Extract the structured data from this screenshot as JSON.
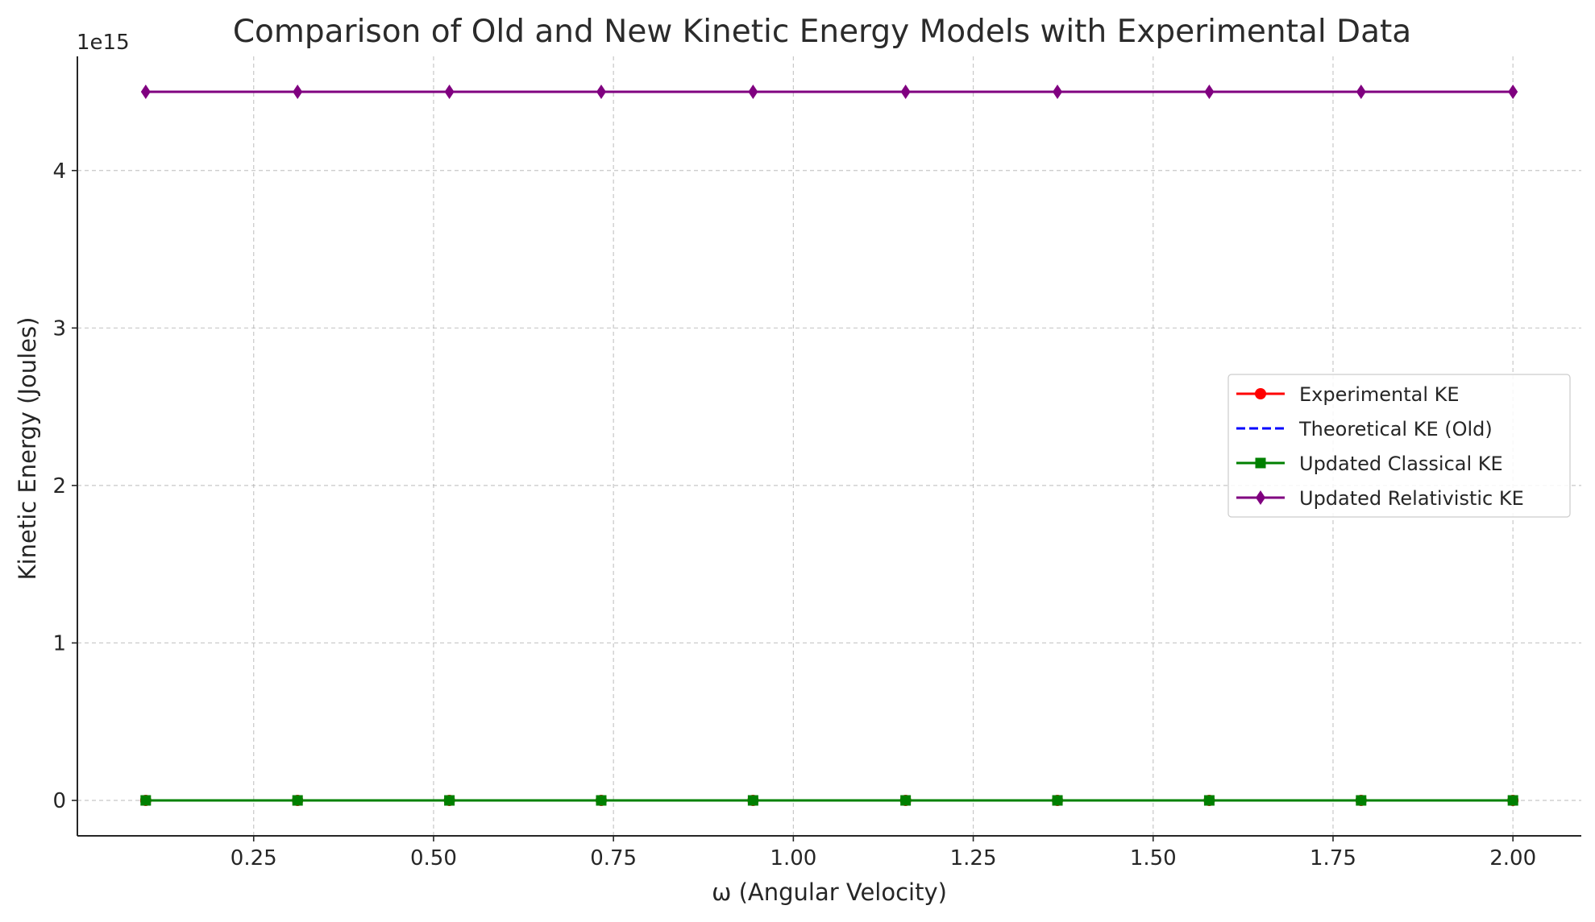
{
  "chart_data": {
    "type": "line",
    "title": "Comparison of Old and New Kinetic Energy Models with Experimental Data",
    "xlabel": "ω (Angular Velocity)",
    "ylabel": "Kinetic Energy (Joules)",
    "y_offset_label": "1e15",
    "xlim": [
      0.005,
      2.095
    ],
    "ylim": [
      -0.225,
      4.725
    ],
    "x_ticks": [
      0.25,
      0.5,
      0.75,
      1.0,
      1.25,
      1.5,
      1.75,
      2.0
    ],
    "x_tick_labels": [
      "0.25",
      "0.50",
      "0.75",
      "1.00",
      "1.25",
      "1.50",
      "1.75",
      "2.00"
    ],
    "y_ticks": [
      0,
      1,
      2,
      3,
      4
    ],
    "y_tick_labels": [
      "0",
      "1",
      "2",
      "3",
      "4"
    ],
    "grid": true,
    "legend_position": "center-right",
    "x": [
      0.1,
      0.311,
      0.522,
      0.733,
      0.944,
      1.156,
      1.367,
      1.578,
      1.789,
      2.0
    ],
    "series": [
      {
        "name": "Experimental KE",
        "color": "#ff0000",
        "marker": "circle",
        "linestyle": "solid",
        "values": [
          0,
          0,
          0,
          0,
          0,
          0,
          0,
          0,
          0,
          0
        ]
      },
      {
        "name": "Theoretical KE (Old)",
        "color": "#0000ff",
        "marker": "none",
        "linestyle": "dashed",
        "values": [
          0,
          0,
          0,
          0,
          0,
          0,
          0,
          0,
          0,
          0
        ]
      },
      {
        "name": "Updated Classical KE",
        "color": "#008000",
        "marker": "square",
        "linestyle": "solid",
        "values": [
          0,
          0,
          0,
          0,
          0,
          0,
          0,
          0,
          0,
          0
        ]
      },
      {
        "name": "Updated Relativistic KE",
        "color": "#800080",
        "marker": "diamond",
        "linestyle": "solid",
        "values": [
          4.5,
          4.5,
          4.5,
          4.5,
          4.5,
          4.5,
          4.5,
          4.5,
          4.5,
          4.5
        ]
      }
    ]
  }
}
